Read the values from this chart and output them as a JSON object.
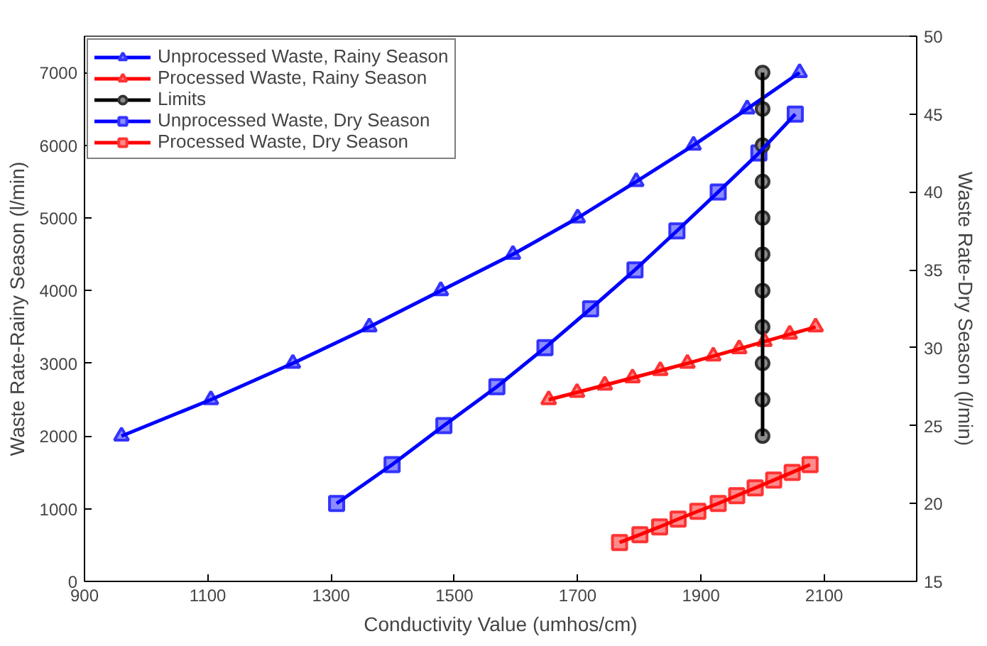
{
  "chart_data": {
    "type": "line",
    "xlabel": "Conductivity Value (umhos/cm)",
    "ylabel": "Waste Rate-Rainy Season (l/min)",
    "y2label": "Waste Rate-Dry Season (l/min)",
    "xlim": [
      900,
      2250
    ],
    "xticks": [
      900,
      1100,
      1300,
      1500,
      1700,
      1900,
      2100
    ],
    "ylim": [
      0,
      7500
    ],
    "yticks": [
      0,
      1000,
      2000,
      3000,
      4000,
      5000,
      6000,
      7000
    ],
    "y2lim": [
      15,
      50
    ],
    "y2ticks": [
      15,
      20,
      25,
      30,
      35,
      40,
      45,
      50
    ],
    "grid": false,
    "legend": "top left",
    "line_style": "solid",
    "series": [
      {
        "name": "Unprocessed Waste, Rainy Season",
        "color": "#0000ff",
        "marker": "triangle",
        "x": [
          960,
          1105,
          1238,
          1362,
          1478,
          1595,
          1700,
          1795,
          1888,
          1975,
          2060
        ],
        "values": [
          2000,
          2500,
          3000,
          3500,
          4000,
          4500,
          5000,
          5500,
          6000,
          6500,
          7000
        ]
      },
      {
        "name": "Processed Waste, Rainy Season",
        "color": "#ff0000",
        "marker": "triangle",
        "x": [
          1653,
          1699,
          1744,
          1789,
          1834,
          1878,
          1920,
          1962,
          2003,
          2044,
          2086
        ],
        "values": [
          2500,
          2600,
          2700,
          2800,
          2900,
          3000,
          3100,
          3200,
          3300,
          3400,
          3500
        ]
      },
      {
        "name": "Limits",
        "color": "#000000",
        "marker": "circle",
        "x": [
          2000,
          2000,
          2000,
          2000,
          2000,
          2000,
          2000,
          2000,
          2000,
          2000,
          2000
        ],
        "values": [
          7000,
          6500,
          6000,
          5500,
          5000,
          4500,
          4000,
          3500,
          3000,
          2500,
          2000
        ]
      },
      {
        "name": "Unprocessed Waste, Dry Season",
        "color": "#0000ff",
        "marker": "square",
        "axis": "y2",
        "x": [
          1309,
          1399,
          1483,
          1569,
          1647,
          1721,
          1793,
          1861,
          1928,
          1994,
          2053
        ],
        "values": [
          20,
          22.5,
          25,
          27.5,
          30,
          32.5,
          35,
          37.5,
          40,
          42.5,
          45
        ]
      },
      {
        "name": "Processed Waste, Dry Season",
        "color": "#ff0000",
        "marker": "square",
        "axis": "y2",
        "x": [
          1768,
          1801,
          1833,
          1863,
          1895,
          1928,
          1958,
          1988,
          2018,
          2048,
          2077
        ],
        "values": [
          17.5,
          18,
          18.5,
          19,
          19.5,
          20,
          20.5,
          21,
          21.5,
          22,
          22.5
        ]
      }
    ]
  }
}
